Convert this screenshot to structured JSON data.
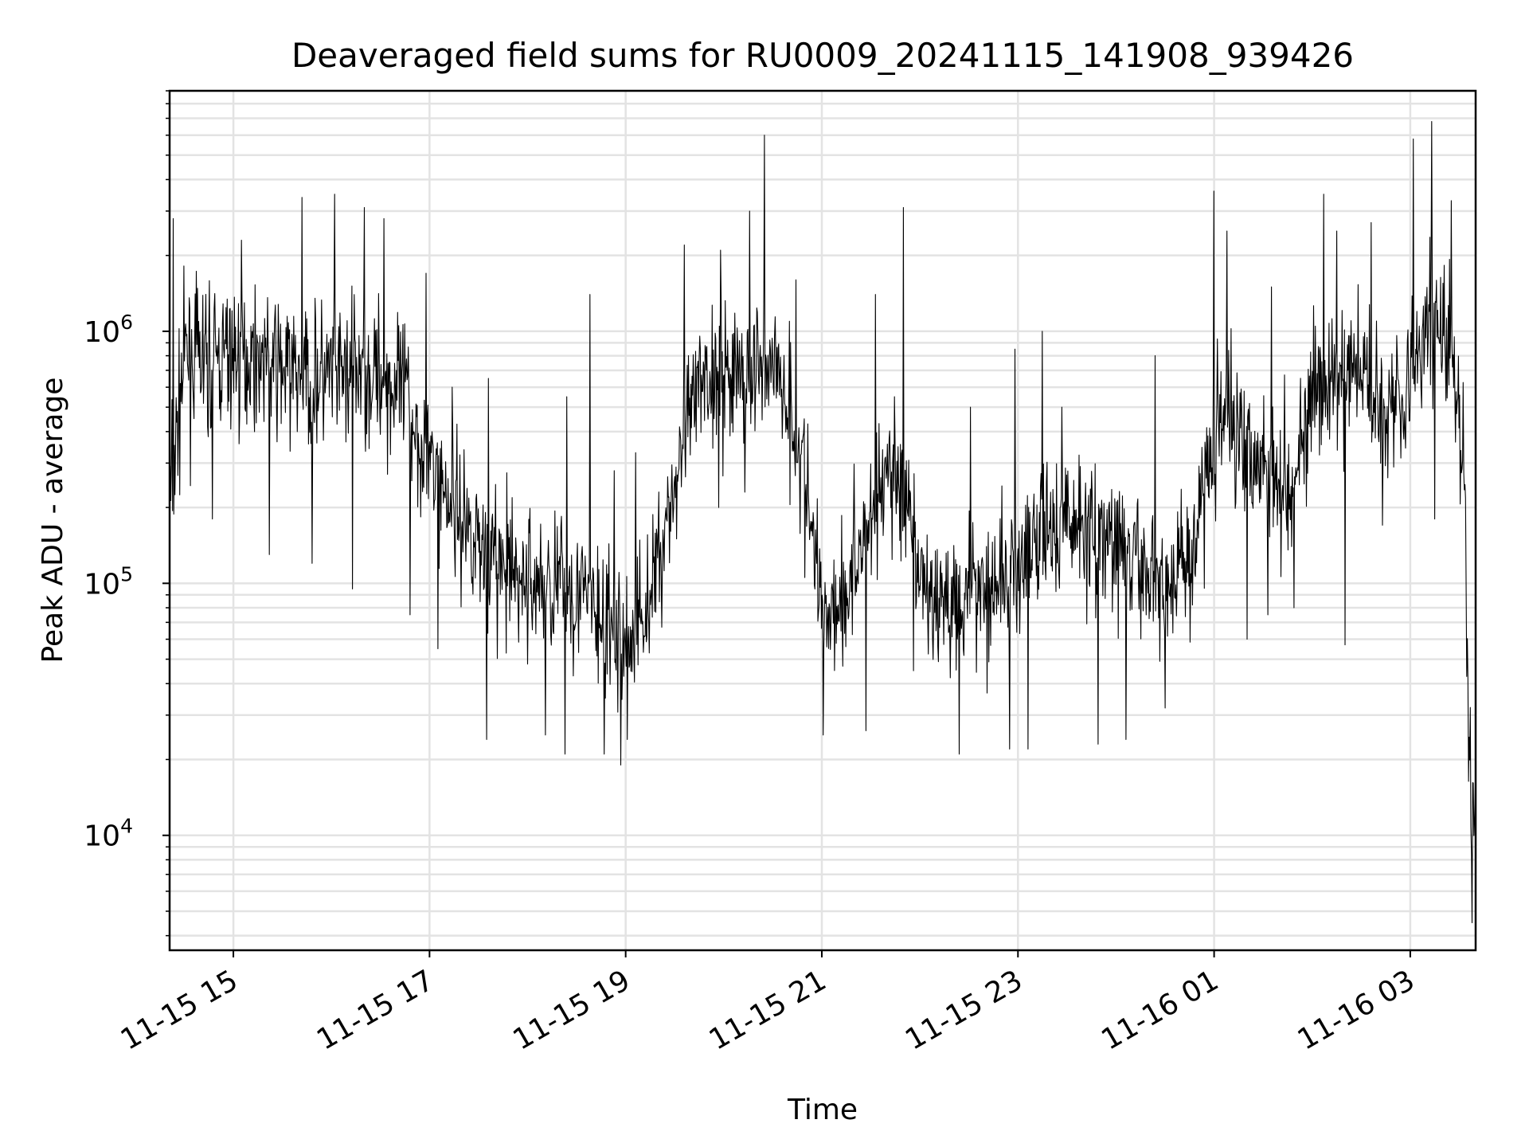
{
  "chart_data": {
    "type": "line",
    "title": "Deaveraged field sums for RU0009_20241115_141908_939426",
    "xlabel": "Time",
    "ylabel": "Peak ADU - average",
    "yscale": "log",
    "ylim": [
      3500,
      9000000
    ],
    "xlim": [
      "2024-11-15 14:21",
      "2024-11-16 03:40"
    ],
    "grid": true,
    "line_color": "#000000",
    "x_ticks": [
      {
        "t": "2024-11-15 15:00",
        "label": "11-15 15"
      },
      {
        "t": "2024-11-15 17:00",
        "label": "11-15 17"
      },
      {
        "t": "2024-11-15 19:00",
        "label": "11-15 19"
      },
      {
        "t": "2024-11-15 21:00",
        "label": "11-15 21"
      },
      {
        "t": "2024-11-15 23:00",
        "label": "11-15 23"
      },
      {
        "t": "2024-11-16 01:00",
        "label": "11-16 01"
      },
      {
        "t": "2024-11-16 03:00",
        "label": "11-16 03"
      }
    ],
    "y_ticks": [
      {
        "value": 10000,
        "base": "10",
        "exp": "4"
      },
      {
        "value": 100000,
        "base": "10",
        "exp": "5"
      },
      {
        "value": 1000000,
        "base": "10",
        "exp": "6"
      }
    ],
    "series": [
      {
        "points": [
          [
            "2024-11-15 14:21",
            200000
          ],
          [
            "2024-11-15 14:30",
            800000
          ],
          [
            "2024-11-15 14:45",
            750000
          ],
          [
            "2024-11-15 15:00",
            800000
          ],
          [
            "2024-11-15 15:15",
            800000
          ],
          [
            "2024-11-15 15:30",
            700000
          ],
          [
            "2024-11-15 15:45",
            650000
          ],
          [
            "2024-11-15 16:00",
            650000
          ],
          [
            "2024-11-15 16:15",
            700000
          ],
          [
            "2024-11-15 16:30",
            650000
          ],
          [
            "2024-11-15 16:45",
            550000
          ],
          [
            "2024-11-15 17:00",
            300000
          ],
          [
            "2024-11-15 17:15",
            200000
          ],
          [
            "2024-11-15 17:30",
            150000
          ],
          [
            "2024-11-15 17:45",
            110000
          ],
          [
            "2024-11-15 18:00",
            100000
          ],
          [
            "2024-11-15 18:15",
            100000
          ],
          [
            "2024-11-15 18:30",
            95000
          ],
          [
            "2024-11-15 18:45",
            70000
          ],
          [
            "2024-11-15 19:00",
            55000
          ],
          [
            "2024-11-15 19:15",
            90000
          ],
          [
            "2024-11-15 19:30",
            250000
          ],
          [
            "2024-11-15 19:45",
            600000
          ],
          [
            "2024-11-15 20:00",
            700000
          ],
          [
            "2024-11-15 20:15",
            650000
          ],
          [
            "2024-11-15 20:30",
            800000
          ],
          [
            "2024-11-15 20:45",
            400000
          ],
          [
            "2024-11-15 21:00",
            80000
          ],
          [
            "2024-11-15 21:15",
            90000
          ],
          [
            "2024-11-15 21:30",
            200000
          ],
          [
            "2024-11-15 21:45",
            300000
          ],
          [
            "2024-11-15 22:00",
            100000
          ],
          [
            "2024-11-15 22:15",
            80000
          ],
          [
            "2024-11-15 22:30",
            100000
          ],
          [
            "2024-11-15 22:45",
            100000
          ],
          [
            "2024-11-15 23:00",
            110000
          ],
          [
            "2024-11-15 23:15",
            150000
          ],
          [
            "2024-11-15 23:30",
            180000
          ],
          [
            "2024-11-15 23:45",
            160000
          ],
          [
            "2024-11-16 00:00",
            140000
          ],
          [
            "2024-11-16 00:15",
            110000
          ],
          [
            "2024-11-16 00:30",
            100000
          ],
          [
            "2024-11-16 00:45",
            120000
          ],
          [
            "2024-11-16 01:00",
            400000
          ],
          [
            "2024-11-16 01:15",
            450000
          ],
          [
            "2024-11-16 01:30",
            300000
          ],
          [
            "2024-11-16 01:45",
            250000
          ],
          [
            "2024-11-16 02:00",
            500000
          ],
          [
            "2024-11-16 02:15",
            650000
          ],
          [
            "2024-11-16 02:30",
            700000
          ],
          [
            "2024-11-16 02:45",
            500000
          ],
          [
            "2024-11-16 03:00",
            650000
          ],
          [
            "2024-11-16 03:15",
            1200000
          ],
          [
            "2024-11-16 03:25",
            800000
          ],
          [
            "2024-11-16 03:33",
            300000
          ],
          [
            "2024-11-16 03:36",
            20000
          ],
          [
            "2024-11-16 03:40",
            12000
          ]
        ],
        "peaks": [
          [
            "2024-11-15 14:23",
            2800000
          ],
          [
            "2024-11-15 14:47",
            2600000
          ],
          [
            "2024-11-15 15:05",
            2300000
          ],
          [
            "2024-11-15 15:42",
            3400000
          ],
          [
            "2024-11-15 16:02",
            3500000
          ],
          [
            "2024-11-15 16:20",
            3100000
          ],
          [
            "2024-11-15 16:32",
            2800000
          ],
          [
            "2024-11-15 16:58",
            1700000
          ],
          [
            "2024-11-15 17:14",
            600000
          ],
          [
            "2024-11-15 17:36",
            650000
          ],
          [
            "2024-11-15 18:24",
            550000
          ],
          [
            "2024-11-15 18:38",
            1400000
          ],
          [
            "2024-11-15 18:53",
            280000
          ],
          [
            "2024-11-15 19:06",
            330000
          ],
          [
            "2024-11-15 19:36",
            2200000
          ],
          [
            "2024-11-15 19:58",
            2100000
          ],
          [
            "2024-11-15 20:16",
            3000000
          ],
          [
            "2024-11-15 20:25",
            6000000
          ],
          [
            "2024-11-15 20:44",
            1600000
          ],
          [
            "2024-11-15 21:33",
            1400000
          ],
          [
            "2024-11-15 21:50",
            3100000
          ],
          [
            "2024-11-15 22:31",
            500000
          ],
          [
            "2024-11-15 22:58",
            850000
          ],
          [
            "2024-11-15 23:15",
            1000000
          ],
          [
            "2024-11-15 23:27",
            500000
          ],
          [
            "2024-11-16 00:24",
            800000
          ],
          [
            "2024-11-16 01:00",
            3600000
          ],
          [
            "2024-11-16 01:08",
            2500000
          ],
          [
            "2024-11-16 01:35",
            1500000
          ],
          [
            "2024-11-16 02:07",
            3500000
          ],
          [
            "2024-11-16 02:15",
            2500000
          ],
          [
            "2024-11-16 02:36",
            2700000
          ],
          [
            "2024-11-16 03:02",
            5800000
          ],
          [
            "2024-11-16 03:13",
            6800000
          ],
          [
            "2024-11-16 03:25",
            3300000
          ]
        ],
        "troughs": [
          [
            "2024-11-15 14:47",
            180000
          ],
          [
            "2024-11-15 15:22",
            130000
          ],
          [
            "2024-11-15 15:48",
            120000
          ],
          [
            "2024-11-15 16:13",
            95000
          ],
          [
            "2024-11-15 16:48",
            75000
          ],
          [
            "2024-11-15 17:05",
            55000
          ],
          [
            "2024-11-15 17:35",
            24000
          ],
          [
            "2024-11-15 18:11",
            25000
          ],
          [
            "2024-11-15 18:23",
            21000
          ],
          [
            "2024-11-15 18:47",
            21000
          ],
          [
            "2024-11-15 18:57",
            19000
          ],
          [
            "2024-11-15 19:01",
            24000
          ],
          [
            "2024-11-15 19:31",
            150000
          ],
          [
            "2024-11-15 19:57",
            200000
          ],
          [
            "2024-11-15 20:13",
            230000
          ],
          [
            "2024-11-15 20:57",
            120000
          ],
          [
            "2024-11-15 21:01",
            25000
          ],
          [
            "2024-11-15 21:27",
            26000
          ],
          [
            "2024-11-15 21:56",
            45000
          ],
          [
            "2024-11-15 22:24",
            21000
          ],
          [
            "2024-11-15 22:55",
            22000
          ],
          [
            "2024-11-15 23:06",
            22000
          ],
          [
            "2024-11-15 23:49",
            23000
          ],
          [
            "2024-11-16 00:06",
            24000
          ],
          [
            "2024-11-16 00:30",
            32000
          ],
          [
            "2024-11-16 01:20",
            60000
          ],
          [
            "2024-11-16 01:33",
            75000
          ],
          [
            "2024-11-16 01:49",
            80000
          ],
          [
            "2024-11-16 02:20",
            57000
          ],
          [
            "2024-11-16 02:43",
            170000
          ],
          [
            "2024-11-16 03:15",
            180000
          ],
          [
            "2024-11-16 03:38",
            4500
          ]
        ]
      }
    ]
  }
}
